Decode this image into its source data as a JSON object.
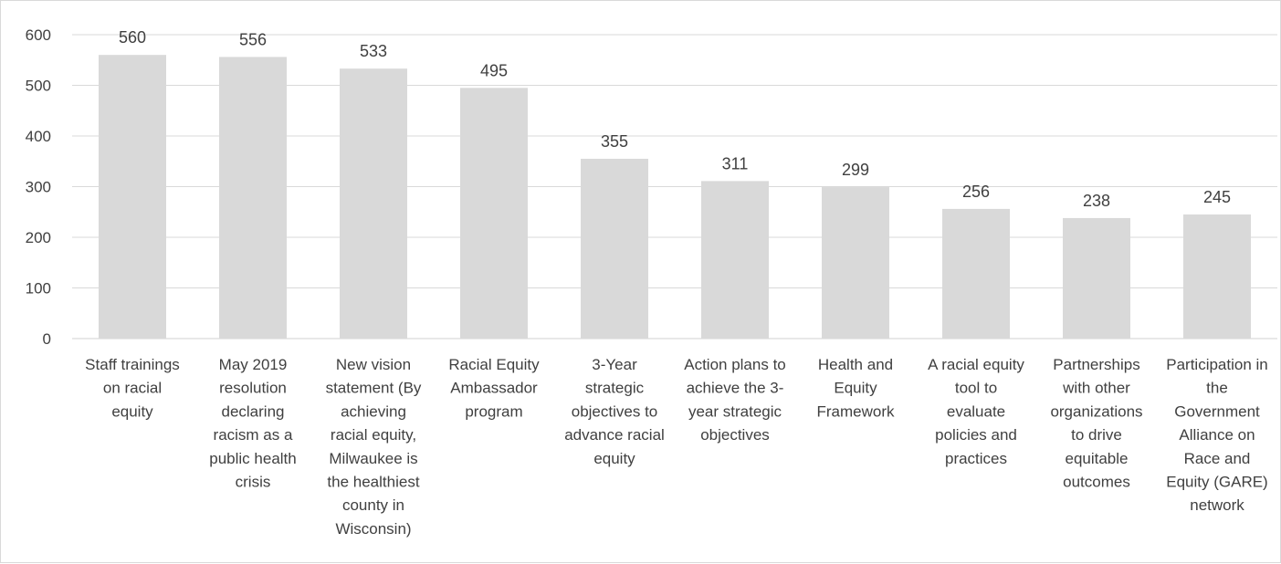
{
  "chart_data": {
    "type": "bar",
    "categories": [
      "Staff trainings on racial equity",
      "May 2019 resolution declaring racism as a public health crisis",
      "New vision statement (By achieving racial equity, Milwaukee is the healthiest county in Wisconsin)",
      "Racial Equity Ambassador program",
      "3-Year strategic objectives to advance racial equity",
      "Action plans to achieve the 3-year strategic objectives",
      "Health and Equity Framework",
      "A racial equity tool to evaluate policies and practices",
      "Partnerships with other organizations to drive equitable outcomes",
      "Participation in the Government Alliance on Race and Equity (GARE) network"
    ],
    "category_lines": [
      [
        "Staff trainings",
        "on racial",
        "equity"
      ],
      [
        "May 2019",
        "resolution",
        "declaring",
        "racism as a",
        "public health",
        "crisis"
      ],
      [
        "New vision",
        "statement (By",
        "achieving",
        "racial equity,",
        "Milwaukee is",
        "the healthiest",
        "county in",
        "Wisconsin)"
      ],
      [
        "Racial Equity",
        "Ambassador",
        "program"
      ],
      [
        "3-Year",
        "strategic",
        "objectives to",
        "advance racial",
        "equity"
      ],
      [
        "Action plans to",
        "achieve the 3-",
        "year strategic",
        "objectives"
      ],
      [
        "Health and",
        "Equity",
        "Framework"
      ],
      [
        "A racial equity",
        "tool to",
        "evaluate",
        "policies and",
        "practices"
      ],
      [
        "Partnerships",
        "with other",
        "organizations",
        "to drive",
        "equitable",
        "outcomes"
      ],
      [
        "Participation in",
        "the",
        "Government",
        "Alliance on",
        "Race and",
        "Equity (GARE)",
        "network"
      ]
    ],
    "values": [
      560,
      556,
      533,
      495,
      355,
      311,
      299,
      256,
      238,
      245
    ],
    "data_labels": [
      "560",
      "556",
      "533",
      "495",
      "355",
      "311",
      "299",
      "256",
      "238",
      "245"
    ],
    "yticks": [
      "0",
      "100",
      "200",
      "300",
      "400",
      "500",
      "600"
    ],
    "ylim": [
      0,
      600
    ],
    "grid": true,
    "legend": "none",
    "bar_color": "#d9d9d9",
    "grid_color": "#d9d9d9",
    "text_color": "#404040"
  }
}
